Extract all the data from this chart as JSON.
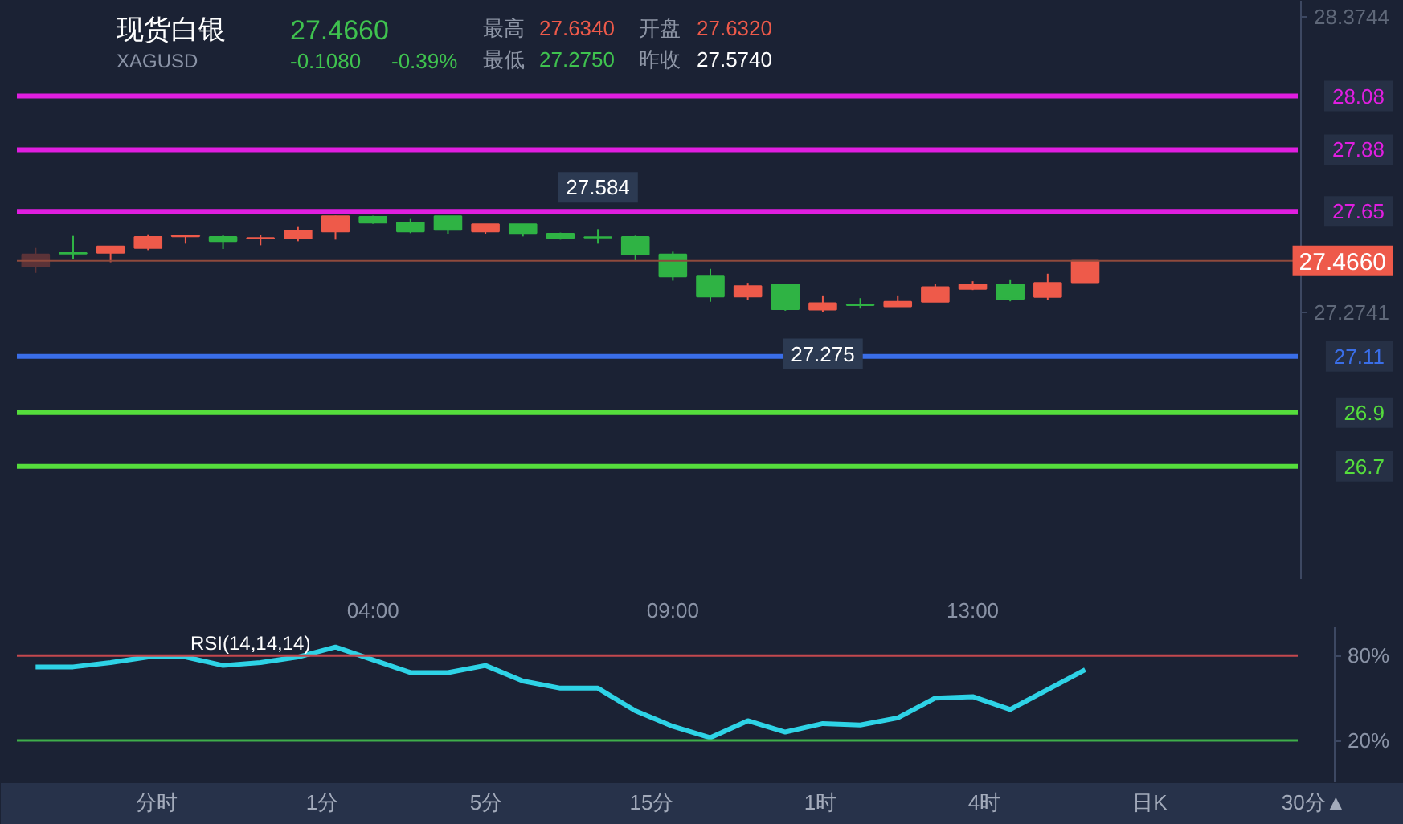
{
  "chart_data": [
    {
      "type": "candlestick",
      "title": "现货白银",
      "subtitle": "XAGUSD",
      "annotations": [
        "27.4660",
        "-0.1080",
        "-0.39%",
        "最高",
        "27.6340",
        "开盘",
        "27.6320",
        "最低",
        "27.2750",
        "昨收",
        "27.5740",
        {
          "text": "27.584",
          "y": 27.584
        },
        {
          "text": "27.275",
          "y": 27.275
        }
      ],
      "categories": [
        null,
        null,
        null,
        null,
        null,
        null,
        null,
        null,
        null,
        "04:00",
        null,
        null,
        null,
        null,
        null,
        null,
        null,
        "09:00",
        null,
        null,
        null,
        null,
        null,
        null,
        null,
        "13:00",
        null,
        null,
        null,
        null,
        null,
        null,
        null,
        null,
        null,
        null,
        null
      ],
      "ohlc": [
        [
          27.445,
          27.514,
          27.421,
          27.49
        ],
        [
          27.495,
          27.559,
          27.471,
          27.493
        ],
        [
          27.496,
          27.52,
          27.461,
          27.52
        ],
        [
          27.514,
          27.565,
          27.506,
          27.555
        ],
        [
          27.557,
          27.56,
          27.53,
          27.56
        ],
        [
          27.555,
          27.563,
          27.51,
          27.539
        ],
        [
          27.549,
          27.563,
          27.524,
          27.551
        ],
        [
          27.549,
          27.592,
          27.539,
          27.579
        ],
        [
          27.575,
          27.634,
          27.545,
          27.632
        ],
        [
          27.63,
          27.634,
          27.604,
          27.608
        ],
        [
          27.608,
          27.622,
          27.569,
          27.575
        ],
        [
          27.632,
          27.632,
          27.567,
          27.581
        ],
        [
          27.575,
          27.602,
          27.567,
          27.602
        ],
        [
          27.602,
          27.602,
          27.557,
          27.569
        ],
        [
          27.567,
          27.571,
          27.545,
          27.551
        ],
        [
          27.554,
          27.584,
          27.53,
          27.553
        ],
        [
          27.555,
          27.56,
          27.465,
          27.49
        ],
        [
          27.49,
          27.5,
          27.392,
          27.408
        ],
        [
          27.408,
          27.436,
          27.313,
          27.333
        ],
        [
          27.333,
          27.384,
          27.321,
          27.372
        ],
        [
          27.378,
          27.378,
          27.28,
          27.286
        ],
        [
          27.284,
          27.337,
          27.275,
          27.308
        ],
        [
          27.302,
          27.327,
          27.288,
          27.301
        ],
        [
          27.296,
          27.337,
          27.296,
          27.313
        ],
        [
          27.313,
          27.38,
          27.313,
          27.368
        ],
        [
          27.361,
          27.39,
          27.357,
          27.378
        ],
        [
          27.378,
          27.394,
          27.315,
          27.324
        ],
        [
          27.331,
          27.418,
          27.319,
          27.384
        ],
        [
          27.386,
          27.466,
          27.386,
          27.466
        ],
        null,
        null,
        null,
        null,
        null,
        null,
        null,
        null
      ],
      "colors": [
        "#5b3338",
        "#2fb344",
        "#ee5a4a",
        "#ee5a4a",
        "#ee5a4a",
        "#2fb344",
        "#ee5a4a",
        "#ee5a4a",
        "#ee5a4a",
        "#2fb344",
        "#2fb344",
        "#2fb344",
        "#ee5a4a",
        "#2fb344",
        "#2fb344",
        "#2fb344",
        "#2fb344",
        "#2fb344",
        "#2fb344",
        "#ee5a4a",
        "#2fb344",
        "#ee5a4a",
        "#2fb344",
        "#ee5a4a",
        "#ee5a4a",
        "#ee5a4a",
        "#2fb344",
        "#ee5a4a",
        "#ee5a4a",
        null,
        null,
        null,
        null,
        null,
        null,
        null,
        null
      ],
      "ylim": [
        26.28,
        28.435
      ],
      "yticks": [
        28.3744,
        27.2741
      ],
      "ref_lines": [
        {
          "axis": "y",
          "value": 28.08,
          "label": "28.08",
          "color": "#e01ee0"
        },
        {
          "axis": "y",
          "value": 27.88,
          "label": "27.88",
          "color": "#e01ee0"
        },
        {
          "axis": "y",
          "value": 27.65,
          "label": "27.65",
          "color": "#e01ee0"
        },
        {
          "axis": "y",
          "value": 27.466,
          "label": "27.4660",
          "color": "#8f4a3c"
        },
        {
          "axis": "y",
          "value": 27.11,
          "label": "27.11",
          "color": "#3a6ee8"
        },
        {
          "axis": "y",
          "value": 26.9,
          "label": "26.9",
          "color": "#55dd3c"
        },
        {
          "axis": "y",
          "value": 26.7,
          "label": "26.7",
          "color": "#55dd3c"
        }
      ],
      "grid": false
    },
    {
      "type": "line",
      "title": "RSI(14,14,14)",
      "categories": [
        null,
        null,
        null,
        null,
        null,
        null,
        null,
        null,
        null,
        null,
        null,
        null,
        null,
        null,
        null,
        null,
        null,
        null,
        null,
        null,
        null,
        null,
        null,
        null,
        null,
        null,
        null,
        null,
        null,
        null,
        null,
        null,
        null,
        null,
        null,
        null,
        null
      ],
      "series": [
        {
          "color": "#2ed3e6",
          "values": [
            72,
            72,
            75,
            79,
            79,
            73,
            75,
            79,
            86,
            77,
            68,
            68,
            73,
            62,
            57,
            57,
            41,
            30,
            22,
            34,
            26,
            32,
            31,
            36,
            50,
            51,
            42,
            56,
            70,
            null,
            null,
            null,
            null,
            null,
            null,
            null,
            null
          ]
        }
      ],
      "ylim": [
        -10,
        100
      ],
      "yticks": [
        {
          "value": 80,
          "label": "80%"
        },
        {
          "value": 20,
          "label": "20%"
        }
      ],
      "ref_lines": [
        {
          "axis": "y",
          "value": 80,
          "color": "#c4484e"
        },
        {
          "axis": "y",
          "value": 20,
          "color": "#3fae4a"
        }
      ],
      "tick_labels": "y",
      "grid": false,
      "annotations": [
        "分时",
        "1分",
        "5分",
        "15分",
        "1时",
        "4时",
        "日K",
        "30分▲"
      ]
    }
  ]
}
